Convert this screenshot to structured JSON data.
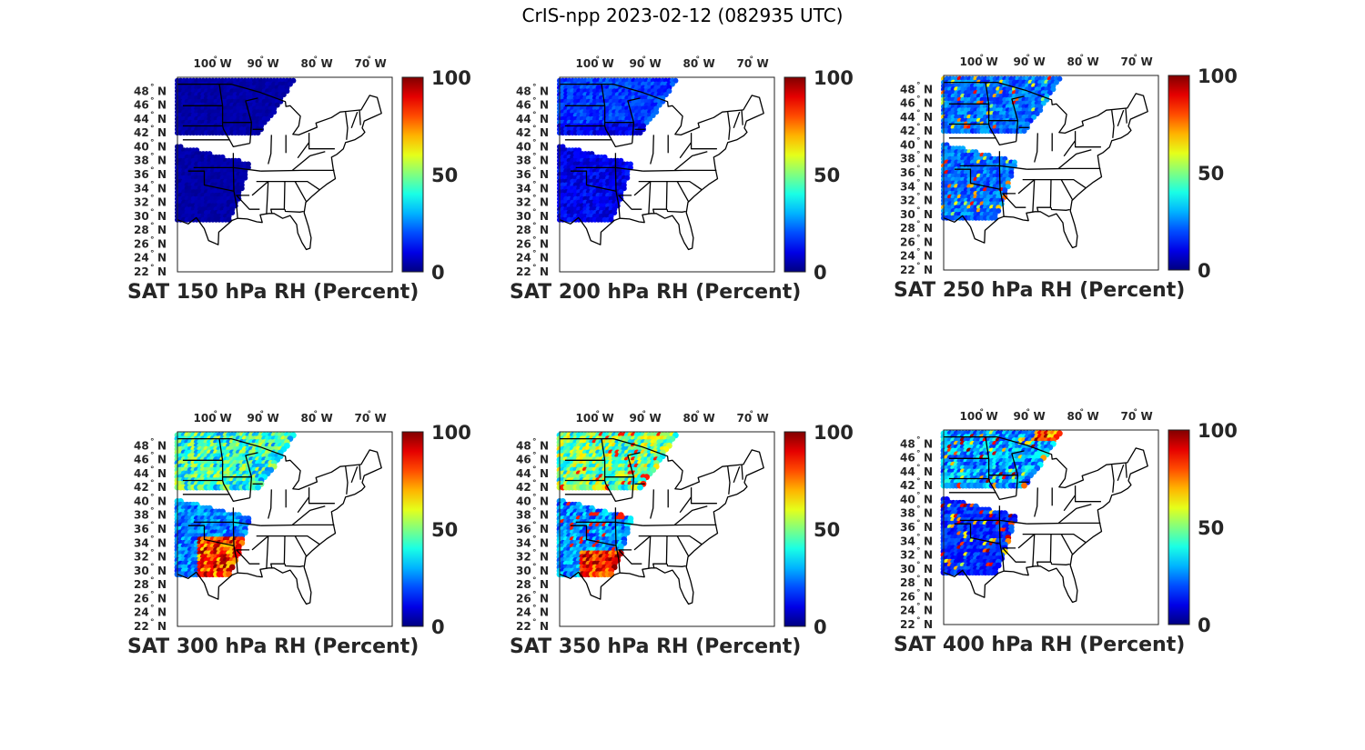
{
  "figure": {
    "title": "CrIS-npp 2023-02-12 (082935 UTC)"
  },
  "map": {
    "lon_ticks": [
      "100",
      "90",
      "80",
      "70"
    ],
    "lon_suffix": "W",
    "lat_ticks": [
      "48",
      "46",
      "44",
      "42",
      "40",
      "38",
      "36",
      "34",
      "32",
      "30",
      "28",
      "26",
      "24",
      "22"
    ],
    "lat_suffix": "N",
    "degree_symbol": "°"
  },
  "colorbar": {
    "ticks": [
      "100",
      "50",
      "0"
    ],
    "colormap": "jet",
    "range": [
      0,
      100
    ]
  },
  "panels": [
    {
      "title": "SAT 150 hPa RH (Percent)",
      "level": 150,
      "humidity_pattern": "uniformly low (~0-5%) across swath"
    },
    {
      "title": "SAT 200 hPa RH (Percent)",
      "level": 200,
      "humidity_pattern": "mostly low (~0-15%), slightly higher in north"
    },
    {
      "title": "SAT 250 hPa RH (Percent)",
      "level": 250,
      "humidity_pattern": "low to moderate (~10-40%), isolated higher spots"
    },
    {
      "title": "SAT 300 hPa RH (Percent)",
      "level": 300,
      "humidity_pattern": "moderate north (~30-60%), high (~80-100%) over southern plains"
    },
    {
      "title": "SAT 350 hPa RH (Percent)",
      "level": 350,
      "humidity_pattern": "moderate to high north, high along Texas gulf"
    },
    {
      "title": "SAT 400 hPa RH (Percent)",
      "level": 400,
      "humidity_pattern": "variable; high spots in south and northeast edge"
    }
  ]
}
